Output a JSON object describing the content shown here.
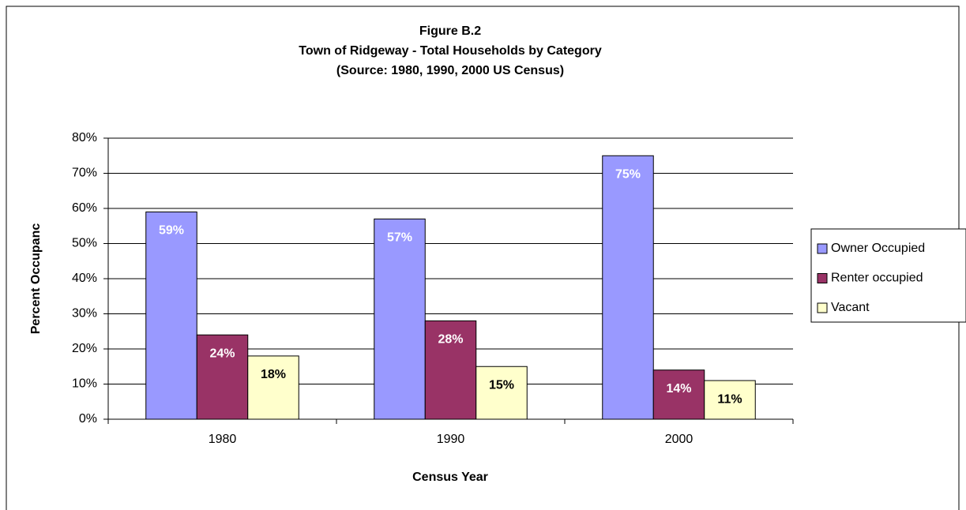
{
  "chart_data": {
    "type": "bar",
    "title": [
      "Figure B.2",
      "Town of Ridgeway - Total Households by Category",
      "(Source:  1980, 1990, 2000 US Census)"
    ],
    "x_label": "Census Year",
    "y_label": "Percent Occupanc",
    "categories": [
      "1980",
      "1990",
      "2000"
    ],
    "series": [
      {
        "name": "Owner Occupied",
        "color": "#9999ff",
        "label_color": "#ffffff",
        "values": [
          59,
          57,
          75
        ],
        "value_labels": [
          "59%",
          "57%",
          "75%"
        ]
      },
      {
        "name": "Renter occupied",
        "color": "#993366",
        "label_color": "#ffffff",
        "values": [
          24,
          28,
          14
        ],
        "value_labels": [
          "24%",
          "28%",
          "14%"
        ]
      },
      {
        "name": "Vacant",
        "color": "#ffffcc",
        "label_color": "#000000",
        "values": [
          18,
          15,
          11
        ],
        "value_labels": [
          "18%",
          "15%",
          "11%"
        ]
      }
    ],
    "ylim": [
      0,
      80
    ],
    "yticks": [
      {
        "value": 0,
        "label": "0%"
      },
      {
        "value": 10,
        "label": "10%"
      },
      {
        "value": 20,
        "label": "20%"
      },
      {
        "value": 30,
        "label": "30%"
      },
      {
        "value": 40,
        "label": "40%"
      },
      {
        "value": 50,
        "label": "50%"
      },
      {
        "value": 60,
        "label": "60%"
      },
      {
        "value": 70,
        "label": "70%"
      },
      {
        "value": 80,
        "label": "80%"
      }
    ],
    "grid": true,
    "legend": "right"
  }
}
